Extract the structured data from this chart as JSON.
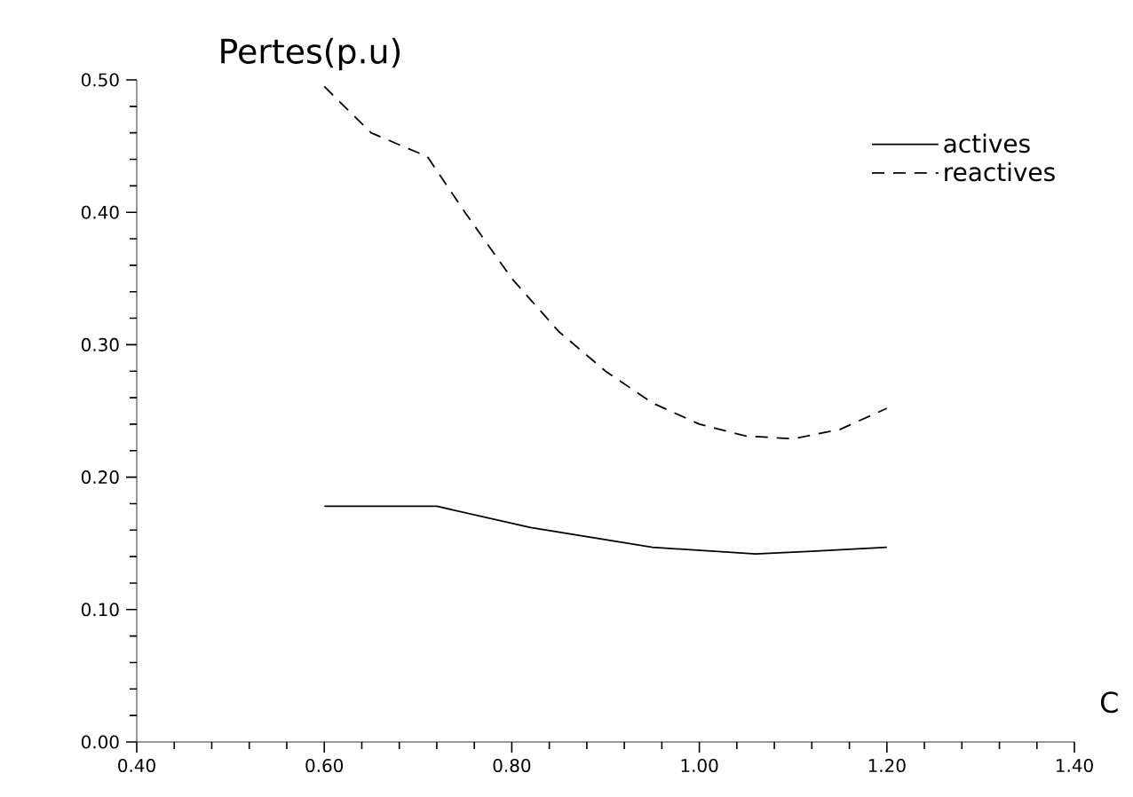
{
  "chart_data": {
    "type": "line",
    "title": "Pertes(p.u)",
    "xlabel": "C",
    "xlim": [
      0.4,
      1.4
    ],
    "ylim": [
      0,
      0.5
    ],
    "xticks": [
      {
        "value": 0.4,
        "label": "0.40"
      },
      {
        "value": 0.6,
        "label": "0.60"
      },
      {
        "value": 0.8,
        "label": "0.80"
      },
      {
        "value": 1.0,
        "label": "1.00"
      },
      {
        "value": 1.2,
        "label": "1.20"
      },
      {
        "value": 1.4,
        "label": "1.40"
      }
    ],
    "yticks": [
      {
        "value": 0,
        "label": "0.00"
      },
      {
        "value": 0.1,
        "label": "0.10"
      },
      {
        "value": 0.2,
        "label": "0.20"
      },
      {
        "value": 0.3,
        "label": "0.30"
      },
      {
        "value": 0.4,
        "label": "0.40"
      },
      {
        "value": 0.5,
        "label": "0.50"
      }
    ],
    "grid": false,
    "legend": "top right",
    "marker": "none",
    "series": [
      {
        "name": "actives",
        "color": "#000000",
        "line_style": "solid",
        "x": [
          0.6,
          0.72,
          0.82,
          0.95,
          1.06,
          1.12,
          1.2
        ],
        "values": [
          0.178,
          0.178,
          0.162,
          0.147,
          0.142,
          0.144,
          0.147
        ]
      },
      {
        "name": "reactives",
        "color": "#000000",
        "line_style": "dashed",
        "x": [
          0.6,
          0.65,
          0.71,
          0.75,
          0.8,
          0.85,
          0.9,
          0.95,
          1.0,
          1.05,
          1.1,
          1.15,
          1.2
        ],
        "values": [
          0.495,
          0.46,
          0.442,
          0.4,
          0.35,
          0.31,
          0.28,
          0.256,
          0.24,
          0.231,
          0.229,
          0.236,
          0.252
        ]
      }
    ]
  }
}
